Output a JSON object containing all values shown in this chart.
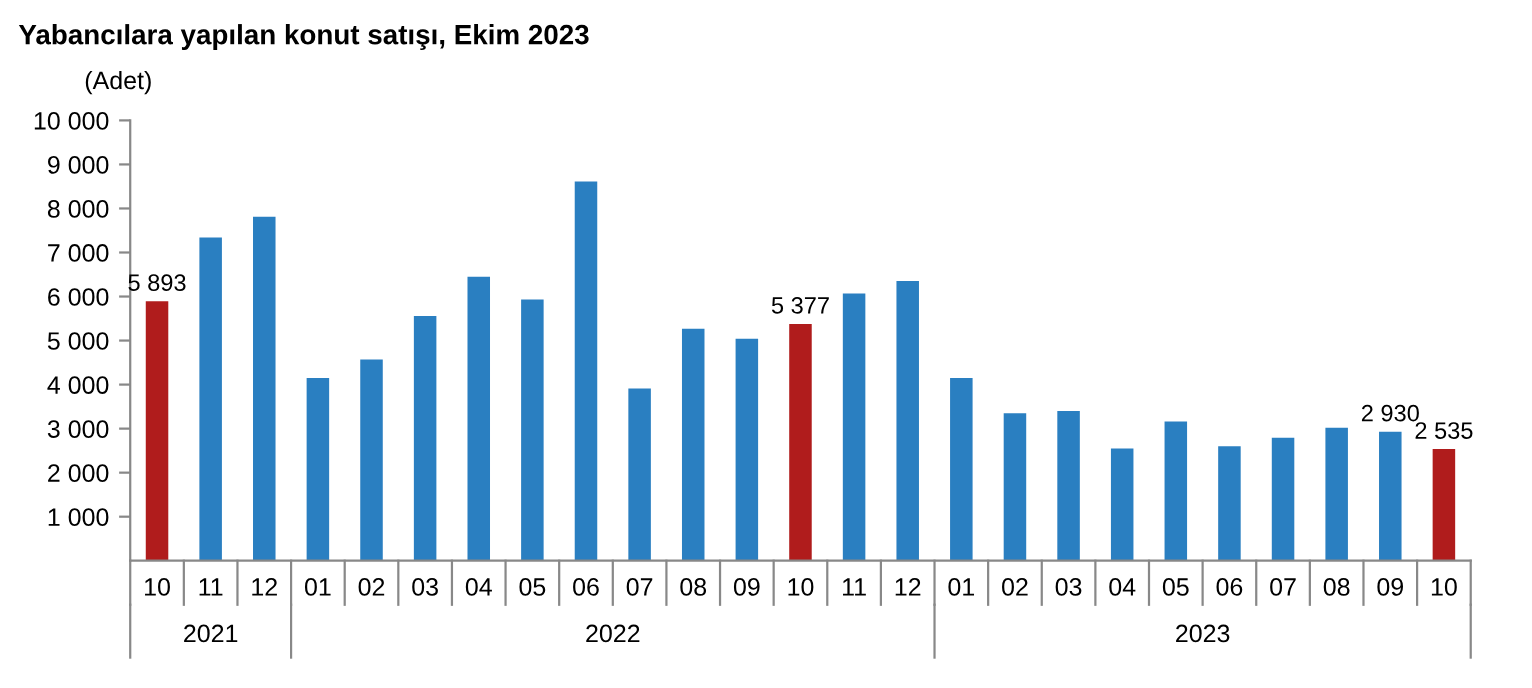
{
  "chart_data": {
    "type": "bar",
    "title": "Yabancılara yapılan konut satışı, Ekim 2023",
    "ylabel": "(Adet)",
    "categories": [
      "10",
      "11",
      "12",
      "01",
      "02",
      "03",
      "04",
      "05",
      "06",
      "07",
      "08",
      "09",
      "10",
      "11",
      "12",
      "01",
      "02",
      "03",
      "04",
      "05",
      "06",
      "07",
      "08",
      "09",
      "10"
    ],
    "values": [
      5893,
      7340,
      7810,
      4150,
      4570,
      5560,
      6450,
      5930,
      8610,
      3910,
      5270,
      5040,
      5377,
      6070,
      6350,
      4150,
      3350,
      3400,
      2550,
      3160,
      2600,
      2790,
      3020,
      2930,
      2535
    ],
    "colors": [
      "#b01c1c",
      "#2a7fc1",
      "#2a7fc1",
      "#2a7fc1",
      "#2a7fc1",
      "#2a7fc1",
      "#2a7fc1",
      "#2a7fc1",
      "#2a7fc1",
      "#2a7fc1",
      "#2a7fc1",
      "#2a7fc1",
      "#b01c1c",
      "#2a7fc1",
      "#2a7fc1",
      "#2a7fc1",
      "#2a7fc1",
      "#2a7fc1",
      "#2a7fc1",
      "#2a7fc1",
      "#2a7fc1",
      "#2a7fc1",
      "#2a7fc1",
      "#2a7fc1",
      "#b01c1c"
    ],
    "value_labels": [
      "5 893",
      null,
      null,
      null,
      null,
      null,
      null,
      null,
      null,
      null,
      null,
      null,
      "5 377",
      null,
      null,
      null,
      null,
      null,
      null,
      null,
      null,
      null,
      null,
      "2 930",
      "2 535"
    ],
    "annotations": [
      "2021",
      "2022",
      "2023"
    ],
    "ylim": [
      0,
      10000
    ],
    "yticks": [
      {
        "value": 1000,
        "label": "1 000"
      },
      {
        "value": 2000,
        "label": "2 000"
      },
      {
        "value": 3000,
        "label": "3 000"
      },
      {
        "value": 4000,
        "label": "4 000"
      },
      {
        "value": 5000,
        "label": "5 000"
      },
      {
        "value": 6000,
        "label": "6 000"
      },
      {
        "value": 7000,
        "label": "7 000"
      },
      {
        "value": 8000,
        "label": "8 000"
      },
      {
        "value": 9000,
        "label": "9 000"
      },
      {
        "value": 10000,
        "label": "10 000"
      }
    ],
    "grid": false
  }
}
